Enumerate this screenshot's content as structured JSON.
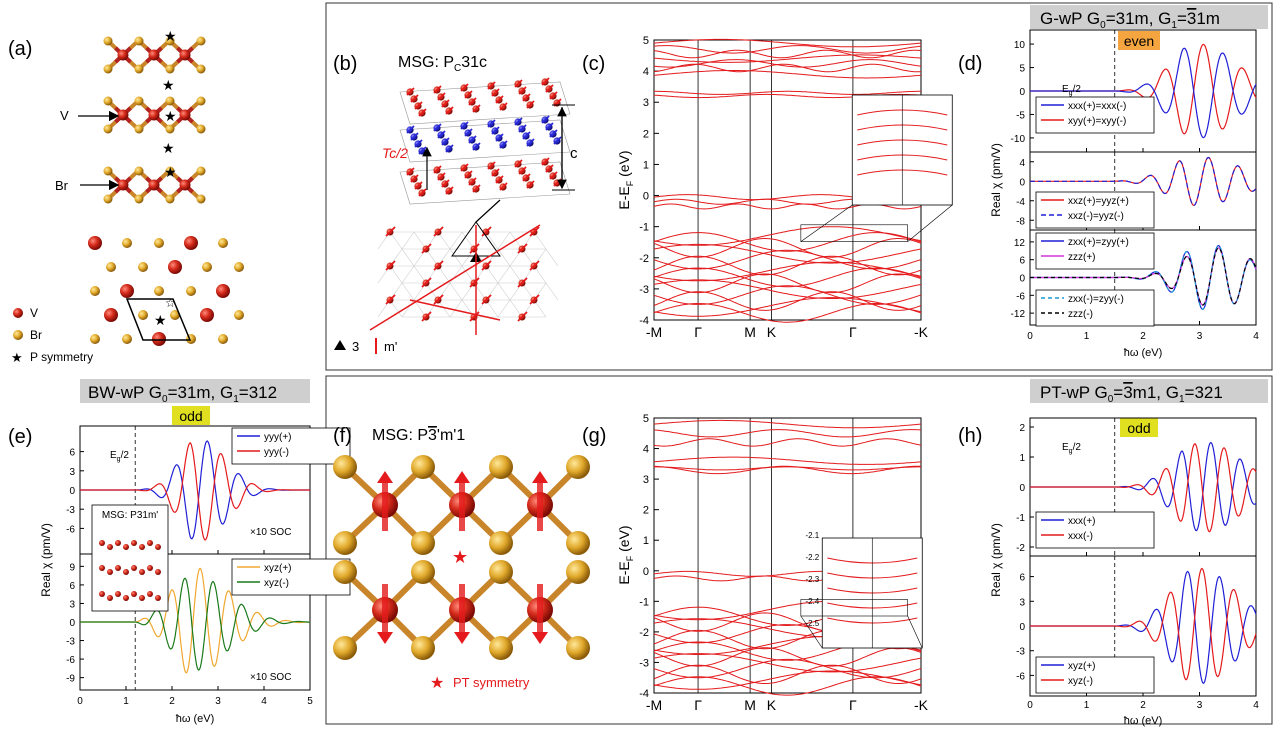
{
  "panels": {
    "a": {
      "label": "(a)",
      "v_arrow": "V",
      "br_arrow": "Br",
      "legend_v": "V",
      "legend_br": "Br",
      "legend_p": "P symmetry"
    },
    "b": {
      "label": "(b)",
      "title": "MSG: P",
      "title_sub": "C",
      "title_tail": "31c",
      "tc": "Tc/2",
      "c": "c",
      "leg3": "3",
      "legm": "m'"
    },
    "c": {
      "label": "(c)",
      "ylabel": "E-E",
      "ylabel_sub": "F",
      "ylabel_tail": " (eV)",
      "yticks": [
        "-4",
        "-3",
        "-2",
        "-1",
        "0",
        "1",
        "2",
        "3",
        "4",
        "5"
      ],
      "kpts": [
        "-M",
        "Γ",
        "M",
        "K",
        "Γ",
        "-K"
      ]
    },
    "d": {
      "label": "(d)",
      "header": "G-wP G",
      "header_s0": "0",
      "header_m": "=31m, G",
      "header_s1": "1",
      "header_t": "=",
      "header_bar": "3",
      "header_e": "1m",
      "badge": "even",
      "eg": "E",
      "eg_sub": "g",
      "eg_tail": "/2",
      "ylabel": "Real χ (pm/V)",
      "xlabel": "ħω (eV)",
      "xticks": [
        "0",
        "1",
        "2",
        "3",
        "4"
      ],
      "sub1": {
        "yticks": [
          "10",
          "5",
          "0",
          "-5",
          "-10"
        ],
        "leg": [
          "xxx(+)=xxx(-)",
          "xyy(+)=xyy(-)"
        ]
      },
      "sub2": {
        "yticks": [
          "4",
          "0",
          "-4",
          "-8"
        ],
        "leg": [
          "xxz(+)=yyz(+)",
          "xxz(-)=yyz(-)"
        ]
      },
      "sub3": {
        "yticks": [
          "12",
          "6",
          "0",
          "-6",
          "-12"
        ],
        "leg": [
          "zxx(+)=zyy(+)",
          "zzz(+)",
          "zxx(-)=zyy(-)",
          "zzz(-)"
        ]
      }
    },
    "e": {
      "label": "(e)",
      "header": "BW-wP G",
      "header_s0": "0",
      "header_m": "=31m, G",
      "header_s1": "1",
      "header_e": "=312",
      "badge": "odd",
      "eg": "E",
      "eg_sub": "g",
      "eg_tail": "/2",
      "ylabel": "Real χ (pm/V)",
      "xlabel": "ħω (eV)",
      "xticks": [
        "0",
        "1",
        "2",
        "3",
        "4",
        "5"
      ],
      "soc": "×10 SOC",
      "inset": "MSG: P31m'",
      "sub1": {
        "yticks": [
          "6",
          "3",
          "0",
          "-3",
          "-6"
        ],
        "leg": [
          "yyy(+)",
          "yyy(-)"
        ]
      },
      "sub2": {
        "yticks": [
          "9",
          "6",
          "3",
          "0",
          "-3",
          "-6",
          "-9"
        ],
        "leg": [
          "xyz(+)",
          "xyz(-)"
        ]
      }
    },
    "f": {
      "label": "(f)",
      "title": "MSG: P",
      "title_bar": "3",
      "title_tail": "'m'1",
      "leg": "PT symmetry"
    },
    "g": {
      "label": "(g)",
      "ylabel": "E-E",
      "ylabel_sub": "F",
      "ylabel_tail": " (eV)",
      "yticks": [
        "-4",
        "-3",
        "-2",
        "-1",
        "0",
        "1",
        "2",
        "3",
        "4",
        "5"
      ],
      "kpts": [
        "-M",
        "Γ",
        "M",
        "K",
        "Γ",
        "-K"
      ],
      "inset_ticks": [
        "-2.1",
        "-2.2",
        "-2.3",
        "-2.4",
        "-2.5"
      ]
    },
    "h": {
      "label": "(h)",
      "header": "PT-wP G",
      "header_s0": "0",
      "header_t": "=",
      "header_bar": "3",
      "header_m": "m1, G",
      "header_s1": "1",
      "header_e": "=321",
      "badge": "odd",
      "eg": "E",
      "eg_sub": "g",
      "eg_tail": "/2",
      "ylabel": "Real χ (pm/V)",
      "xlabel": "ħω (eV)",
      "xticks": [
        "0",
        "1",
        "2",
        "3",
        "4"
      ],
      "sub1": {
        "yticks": [
          "2",
          "1",
          "0",
          "-1",
          "-2"
        ],
        "leg": [
          "xxx(+)",
          "xxx(-)"
        ]
      },
      "sub2": {
        "yticks": [
          "6",
          "3",
          "0",
          "-3",
          "-6"
        ],
        "leg": [
          "xyz(+)",
          "xyz(-)"
        ]
      }
    }
  },
  "colors": {
    "red": "#e41a1c",
    "blue": "#1f1fd6",
    "orange": "#f0a830",
    "green": "#1a7a1a",
    "magenta": "#d633d6",
    "badge_even": "#f5a540",
    "badge_odd": "#e0e020",
    "header_bg": "#cfcfcf",
    "gold": "#d4a017",
    "vred": "#b22222"
  }
}
